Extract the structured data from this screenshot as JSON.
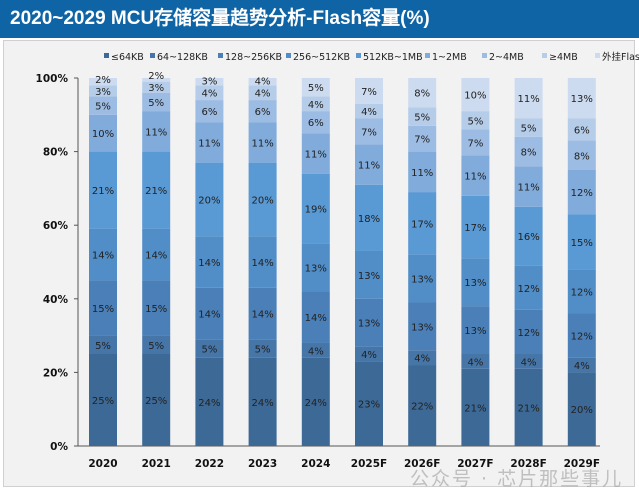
{
  "chart_data": {
    "type": "bar",
    "stacked": true,
    "title": "2020~2029 MCU存储容量趋势分析-Flash容量(%)",
    "categories": [
      "2020",
      "2021",
      "2022",
      "2023",
      "2024",
      "2025F",
      "2026F",
      "2027F",
      "2028F",
      "2029F"
    ],
    "series": [
      {
        "name": "≤64KB",
        "color": "#3d6996",
        "values": [
          25,
          25,
          24,
          24,
          24,
          23,
          22,
          21,
          21,
          20
        ]
      },
      {
        "name": "64~128KB",
        "color": "#4675a8",
        "values": [
          5,
          5,
          5,
          5,
          4,
          4,
          4,
          4,
          4,
          4
        ]
      },
      {
        "name": "128~256KB",
        "color": "#4b7fb8",
        "values": [
          15,
          15,
          14,
          14,
          14,
          13,
          13,
          13,
          12,
          12
        ]
      },
      {
        "name": "256~512KB",
        "color": "#518dc6",
        "values": [
          14,
          14,
          14,
          14,
          13,
          13,
          13,
          13,
          12,
          12
        ]
      },
      {
        "name": "512KB~1MB",
        "color": "#5999d4",
        "values": [
          21,
          21,
          20,
          20,
          19,
          18,
          17,
          17,
          16,
          15
        ]
      },
      {
        "name": "1~2MB",
        "color": "#80abdb",
        "values": [
          10,
          11,
          11,
          11,
          11,
          11,
          11,
          11,
          11,
          12
        ]
      },
      {
        "name": "2~4MB",
        "color": "#9dbce3",
        "values": [
          5,
          5,
          6,
          6,
          6,
          7,
          7,
          7,
          8,
          8
        ]
      },
      {
        "name": "≥4MB",
        "color": "#b6cde9",
        "values": [
          3,
          3,
          4,
          4,
          4,
          4,
          5,
          5,
          5,
          6
        ]
      },
      {
        "name": "外挂Flash",
        "color": "#ccdbef",
        "values": [
          2,
          2,
          3,
          4,
          5,
          7,
          8,
          10,
          11,
          13
        ]
      }
    ],
    "yticks": [
      "0%",
      "20%",
      "40%",
      "60%",
      "80%",
      "100%"
    ],
    "ylim": [
      0,
      100
    ],
    "legend_position": "top",
    "grid": false
  },
  "watermark": "公众号 · 芯片那些事儿"
}
